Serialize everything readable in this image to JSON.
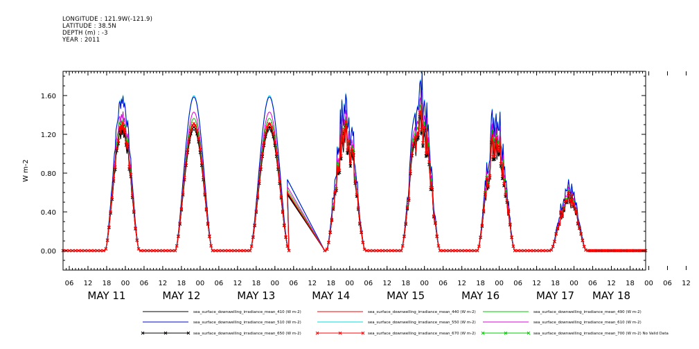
{
  "header": {
    "longitude": "LONGITUDE : 121.9W(-121.9)",
    "latitude": "LATITUDE : 38.5N",
    "depth": "DEPTH (m) : -3",
    "year": "YEAR : 2011"
  },
  "chart_data": {
    "type": "line",
    "title": "",
    "xlabel": "",
    "ylabel": "W m-2",
    "ylim": [
      -0.2,
      1.85
    ],
    "yticks": [
      0.0,
      0.4,
      0.8,
      1.2,
      1.6
    ],
    "ytick_labels": [
      "0.00",
      "0.40",
      "0.80",
      "1.20",
      "1.60"
    ],
    "xlim_hours": [
      0,
      187
    ],
    "hour_tick_labels": [
      "06",
      "12",
      "18",
      "00",
      "06",
      "12",
      "18",
      "00",
      "06",
      "12",
      "18",
      "00",
      "06",
      "12",
      "18",
      "00",
      "06",
      "12",
      "18",
      "00",
      "06",
      "12",
      "18",
      "00",
      "06",
      "12",
      "18",
      "00",
      "06",
      "12",
      "18",
      "00",
      "06",
      "12",
      "18"
    ],
    "day_labels": [
      "MAY 11",
      "MAY 12",
      "MAY 13",
      "MAY 14",
      "MAY 15",
      "MAY 16",
      "MAY 17",
      "MAY 18"
    ],
    "grid": false,
    "legend_position": "bottom",
    "days": [
      {
        "peak": 1.3,
        "noise": 0.06,
        "start": 13.5,
        "end": 24.5,
        "shift": 19.5
      },
      {
        "peak": 1.3,
        "noise": 0.0,
        "start": 36.0,
        "end": 48.0,
        "shift": 42.0
      },
      {
        "peak": 1.3,
        "noise": 0.0,
        "start": 60.0,
        "end": 72.5,
        "shift": 66.0
      },
      {
        "peak": 1.25,
        "noise": 0.18,
        "start": 84.5,
        "end": 97.0,
        "shift": 90.5
      },
      {
        "peak": 1.38,
        "noise": 0.15,
        "start": 108.5,
        "end": 121.0,
        "shift": 114.5
      },
      {
        "peak": 1.2,
        "noise": 0.17,
        "start": 133.0,
        "end": 145.0,
        "shift": 139.0
      },
      {
        "peak": 0.55,
        "noise": 0.15,
        "start": 156.5,
        "end": 168.0,
        "shift": 162.0
      }
    ],
    "gap": {
      "from_hour": 72.0,
      "to_hour": 84.0
    },
    "series": [
      {
        "name": "sea_surface_downwelling_irradiance_mean_410 (W m-2)",
        "color": "#000000",
        "scale": 0.96,
        "marker": "none"
      },
      {
        "name": "sea_surface_downwelling_irradiance_mean_440 (W m-2)",
        "color": "#ff0000",
        "scale": 1.0,
        "marker": "none"
      },
      {
        "name": "sea_surface_downwelling_irradiance_mean_490 (W m-2)",
        "color": "#00cc00",
        "scale": 1.05,
        "marker": "none"
      },
      {
        "name": "sea_surface_downwelling_irradiance_mean_510 (W m-2)",
        "color": "#0000cc",
        "scale": 1.22,
        "marker": "none"
      },
      {
        "name": "sea_surface_downwelling_irradiance_mean_550 (W m-2)",
        "color": "#00dddd",
        "scale": 1.23,
        "marker": "none"
      },
      {
        "name": "sea_surface_downwelling_irradiance_mean_610 (W m-2)",
        "color": "#dd00dd",
        "scale": 1.1,
        "marker": "none"
      },
      {
        "name": "sea_surface_downwelling_irradiance_mean_650 (W m-2)",
        "color": "#000000",
        "scale": 0.98,
        "marker": "x"
      },
      {
        "name": "sea_surface_downwelling_irradiance_mean_670 (W m-2)",
        "color": "#ff0000",
        "scale": 1.01,
        "marker": "x"
      },
      {
        "name": "sea_surface_downwelling_irradiance_mean_700 (W m-2) No Valid Data",
        "color": "#00cc00",
        "scale": 0.0,
        "marker": "x"
      }
    ]
  }
}
